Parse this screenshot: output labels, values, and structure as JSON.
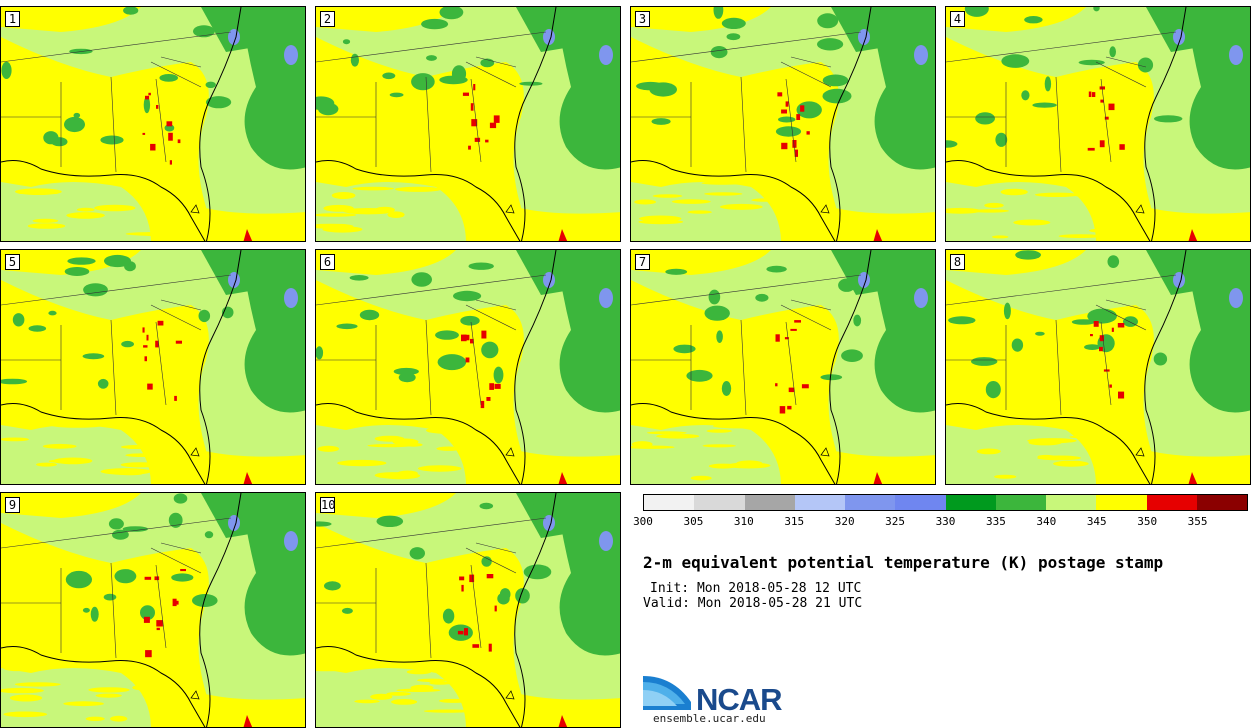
{
  "panels": [
    {
      "label": "1",
      "variant": 0
    },
    {
      "label": "2",
      "variant": 1
    },
    {
      "label": "3",
      "variant": 2
    },
    {
      "label": "4",
      "variant": 3
    },
    {
      "label": "5",
      "variant": 4
    },
    {
      "label": "6",
      "variant": 5
    },
    {
      "label": "7",
      "variant": 6
    },
    {
      "label": "8",
      "variant": 7
    },
    {
      "label": "9",
      "variant": 8
    },
    {
      "label": "10",
      "variant": 9
    }
  ],
  "colorbar": {
    "colors": [
      "#f2f2f2",
      "#d9d9d9",
      "#a6a6a6",
      "#b4c6f7",
      "#7f96ee",
      "#6f86f0",
      "#009a1e",
      "#3cb63c",
      "#c8f77a",
      "#ffff00",
      "#e60000",
      "#8b0000"
    ],
    "ticks": [
      "300",
      "305",
      "310",
      "315",
      "320",
      "325",
      "330",
      "335",
      "340",
      "345",
      "350",
      "355"
    ]
  },
  "title": "2-m equivalent potential temperature (K) postage stamp",
  "init": "Init: Mon 2018-05-28 12 UTC",
  "valid": "Valid: Mon 2018-05-28 21 UTC",
  "logo": {
    "text": "NCAR",
    "url": "ensemble.ucar.edu"
  }
}
